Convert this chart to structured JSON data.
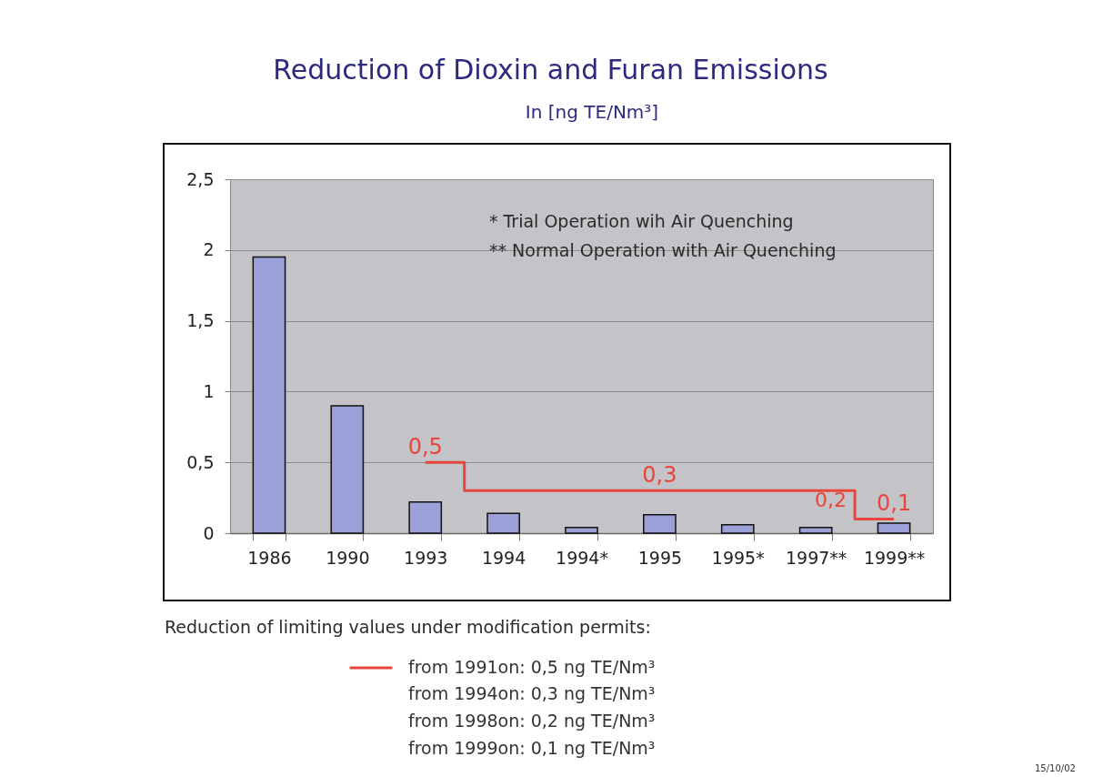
{
  "chart_data": {
    "type": "bar",
    "title": "Reduction of Dioxin and Furan Emissions",
    "subtitle": "In [ng TE/Nm³]",
    "categories": [
      "1986",
      "1990",
      "1993",
      "1994",
      "1994*",
      "1995",
      "1995*",
      "1997**",
      "1999**"
    ],
    "series": [
      {
        "color": "#9ca0d8",
        "values": [
          1.95,
          0.9,
          0.22,
          0.14,
          0.04,
          0.13,
          0.06,
          0.04,
          0.07
        ]
      },
      {
        "type": "step",
        "name": "from 1991on: 0,5 ng TE/Nm³",
        "color": "#e8453c",
        "values": [
          null,
          null,
          0.5,
          0.3,
          0.3,
          0.3,
          0.3,
          0.3,
          0.1
        ],
        "value_labels": [
          null,
          null,
          "0,5",
          null,
          null,
          "0,3",
          null,
          null,
          "0,1"
        ]
      }
    ],
    "ylim": [
      0,
      2.5
    ],
    "yticks": [
      0,
      {
        "value": 0.5,
        "label": "0,5"
      },
      1,
      {
        "value": 1.5,
        "label": "1,5"
      },
      2,
      {
        "value": 2.5,
        "label": "2,5"
      }
    ],
    "grid": "y",
    "legend": "bottom",
    "annotations": [
      "* Trial Operation wih Air Quenching",
      "** Normal Operation with Air Quenching",
      "Reduction of limiting values under modification permits:",
      "from 1994on: 0,3 ng TE/Nm³",
      "from 1998on: 0,2 ng TE/Nm³",
      "from 1999on: 0,1 ng TE/Nm³",
      "0,2",
      "15/10/02"
    ]
  }
}
